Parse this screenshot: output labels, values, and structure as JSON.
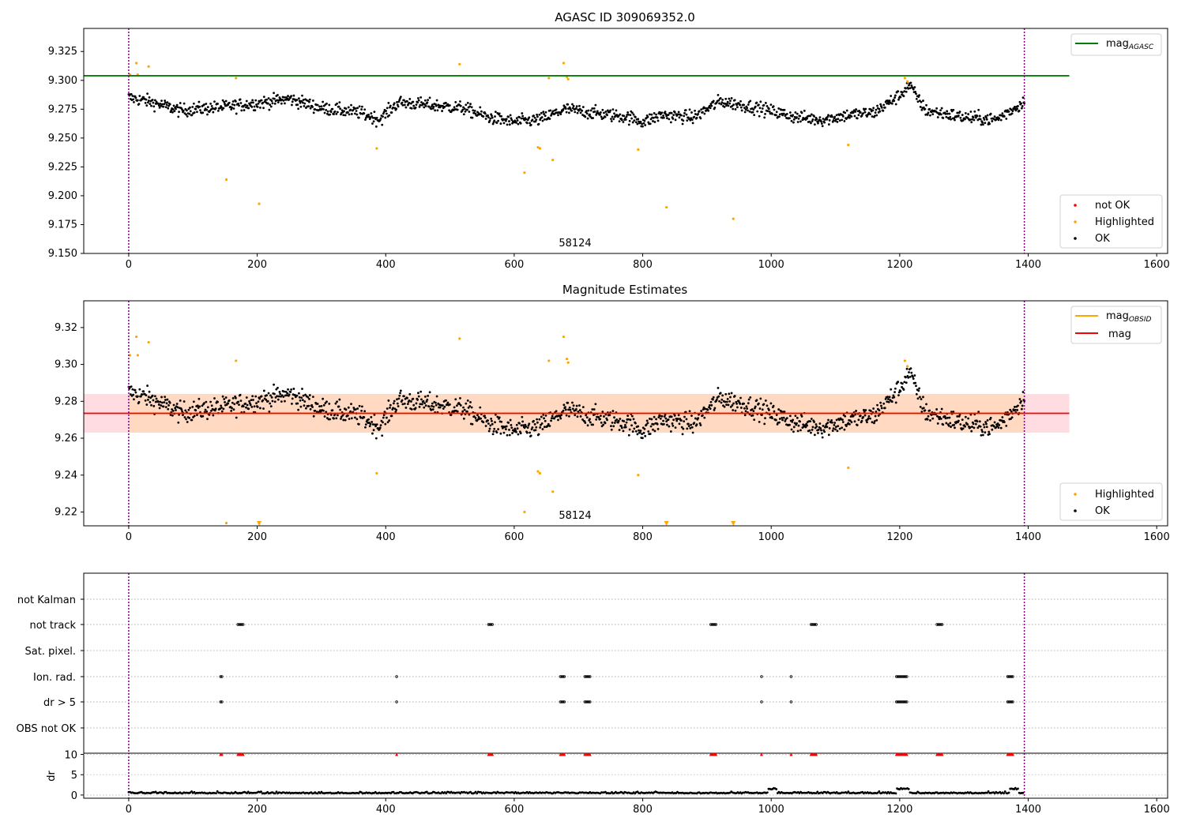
{
  "chart_data": [
    {
      "type": "scatter",
      "title": "AGASC ID 309069352.0",
      "xlabel": "",
      "ylabel": "",
      "xlim": [
        -70,
        1617
      ],
      "ylim": [
        9.15,
        9.345
      ],
      "xticks": [
        "0",
        "200",
        "400",
        "600",
        "800",
        "1000",
        "1200",
        "1400",
        "1600"
      ],
      "yticks": [
        "9.150",
        "9.175",
        "9.200",
        "9.225",
        "9.250",
        "9.275",
        "9.300",
        "9.325"
      ],
      "annotation": "58124",
      "obs_boundaries": [
        0,
        1394
      ],
      "reference_lines": [
        {
          "name_main": "mag",
          "name_sub": "AGASC",
          "y": 9.304,
          "x_range": [
            -70,
            1464
          ],
          "color": "#008000"
        }
      ],
      "legend": [
        {
          "label": "not OK",
          "color": "#ff0000"
        },
        {
          "label": "Highlighted",
          "color": "#ffa500"
        },
        {
          "label": "OK",
          "color": "#000000"
        }
      ],
      "legend_top_position": "upper right",
      "legend_bottom_position": "lower right",
      "series": [
        {
          "name": "OK",
          "color": "#000000",
          "n": 1390,
          "x_range": [
            0,
            1394
          ],
          "trend": [
            [
              0,
              9.285
            ],
            [
              30,
              9.282
            ],
            [
              80,
              9.274
            ],
            [
              150,
              9.277
            ],
            [
              210,
              9.281
            ],
            [
              250,
              9.284
            ],
            [
              300,
              9.276
            ],
            [
              360,
              9.272
            ],
            [
              390,
              9.266
            ],
            [
              420,
              9.281
            ],
            [
              460,
              9.279
            ],
            [
              520,
              9.276
            ],
            [
              560,
              9.268
            ],
            [
              600,
              9.264
            ],
            [
              640,
              9.266
            ],
            [
              680,
              9.275
            ],
            [
              720,
              9.272
            ],
            [
              780,
              9.268
            ],
            [
              800,
              9.264
            ],
            [
              830,
              9.27
            ],
            [
              880,
              9.268
            ],
            [
              920,
              9.282
            ],
            [
              980,
              9.276
            ],
            [
              1040,
              9.268
            ],
            [
              1080,
              9.266
            ],
            [
              1120,
              9.27
            ],
            [
              1160,
              9.272
            ],
            [
              1200,
              9.287
            ],
            [
              1215,
              9.296
            ],
            [
              1240,
              9.274
            ],
            [
              1300,
              9.268
            ],
            [
              1350,
              9.266
            ],
            [
              1385,
              9.278
            ],
            [
              1394,
              9.282
            ]
          ],
          "scatter": 0.008
        },
        {
          "name": "Highlighted",
          "color": "#ffa500",
          "points": [
            [
              2,
              9.305
            ],
            [
              12,
              9.315
            ],
            [
              14,
              9.305
            ],
            [
              31,
              9.312
            ],
            [
              152,
              9.214
            ],
            [
              167,
              9.302
            ],
            [
              203,
              9.193
            ],
            [
              386,
              9.241
            ],
            [
              515,
              9.314
            ],
            [
              616,
              9.22
            ],
            [
              637,
              9.242
            ],
            [
              640,
              9.241
            ],
            [
              654,
              9.302
            ],
            [
              660,
              9.231
            ],
            [
              677,
              9.315
            ],
            [
              682,
              9.303
            ],
            [
              684,
              9.301
            ],
            [
              793,
              9.24
            ],
            [
              837,
              9.19
            ],
            [
              941,
              9.18
            ],
            [
              1120,
              9.244
            ],
            [
              1208,
              9.302
            ],
            [
              1212,
              9.299
            ]
          ]
        }
      ]
    },
    {
      "type": "scatter",
      "title": "Magnitude Estimates",
      "xlabel": "",
      "ylabel": "",
      "xlim": [
        -70,
        1617
      ],
      "ylim": [
        9.2125,
        9.3345
      ],
      "xticks": [
        "0",
        "200",
        "400",
        "600",
        "800",
        "1000",
        "1200",
        "1400",
        "1600"
      ],
      "yticks": [
        "9.22",
        "9.24",
        "9.26",
        "9.28",
        "9.30",
        "9.32"
      ],
      "annotation": "58124",
      "obs_boundaries": [
        0,
        1394
      ],
      "reference_lines": [
        {
          "name_main": "mag",
          "name_sub": "OBSID",
          "y": 9.2735,
          "x_range": [
            0,
            1394
          ],
          "color": "#ffa500"
        },
        {
          "name_main": "mag",
          "name_sub": "",
          "y": 9.2735,
          "x_range": [
            -70,
            1464
          ],
          "color": "#ff0000"
        }
      ],
      "band_obsid": {
        "y_range": [
          9.263,
          9.284
        ],
        "x_range": [
          0,
          1394
        ],
        "color": "#ffd8bf"
      },
      "band_mag": {
        "y_range": [
          9.263,
          9.284
        ],
        "x_range": [
          -70,
          1464
        ],
        "color": "#ffc0cb"
      },
      "legend": [
        {
          "label": "Highlighted",
          "color": "#ffa500"
        },
        {
          "label": "OK",
          "color": "#000000"
        }
      ],
      "offscale_markers": [
        [
          203,
          9.2125
        ],
        [
          837,
          9.2125
        ],
        [
          941,
          9.2125
        ]
      ]
    },
    {
      "type": "scatter",
      "title": "",
      "xlim": [
        -70,
        1617
      ],
      "flag_rows": [
        "not Kalman",
        "not track",
        "Sat. pixel.",
        "Ion. rad.",
        "dr > 5",
        "OBS not OK"
      ],
      "flag_clusters": {
        "not track": [
          [
            170,
            178
          ],
          [
            560,
            566
          ],
          [
            906,
            914
          ],
          [
            1062,
            1070
          ],
          [
            1258,
            1266
          ]
        ],
        "Ion. rad.": [
          [
            143,
            145
          ],
          [
            417,
            418
          ],
          [
            672,
            679
          ],
          [
            710,
            718
          ],
          [
            985,
            986
          ],
          [
            1031,
            1032
          ],
          [
            1195,
            1212
          ],
          [
            1368,
            1376
          ]
        ],
        "dr > 5": [
          [
            143,
            145
          ],
          [
            417,
            418
          ],
          [
            672,
            679
          ],
          [
            710,
            718
          ],
          [
            985,
            986
          ],
          [
            1031,
            1032
          ],
          [
            1195,
            1212
          ],
          [
            1368,
            1376
          ]
        ]
      },
      "dr": {
        "ylabel": "dr",
        "yticks": [
          "0",
          "5",
          "10"
        ],
        "ylim": [
          -0.4,
          10.3
        ],
        "baseline": 0.4,
        "clipped_value": 10,
        "clipped_color": "#ff0000"
      },
      "xticks": [
        "0",
        "200",
        "400",
        "600",
        "800",
        "1000",
        "1200",
        "1400",
        "1600"
      ]
    }
  ]
}
